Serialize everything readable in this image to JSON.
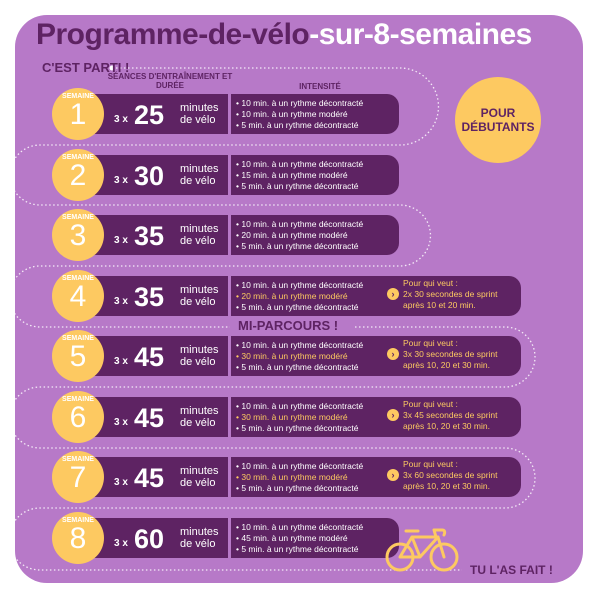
{
  "title": {
    "part1": "Programme-de-vélo",
    "part2": "-sur-8-semaines"
  },
  "start_label": "C'EST PARTI !",
  "headers": {
    "sessions": "SÉANCES D'ENTRAÎNEMENT ET DURÉE",
    "intensity": "INTENSITÉ"
  },
  "badge": "POUR DÉBUTANTS",
  "midpoint_label": "MI-PARCOURS !",
  "end_label": "TU L'AS FAIT !",
  "colors": {
    "background": "#b779c8",
    "dark": "#5e2363",
    "accent": "#fdc961"
  },
  "weeks": [
    {
      "label": "SEMAINE",
      "num": "1",
      "times": "3 x",
      "minutes": "25",
      "unit": "minutes de vélo",
      "steps": [
        "• 10 min. à un rythme décontracté",
        "• 10 min. à un rythme modéré",
        "• 5 min. à un rythme décontracté"
      ],
      "highlight": false
    },
    {
      "label": "SEMAINE",
      "num": "2",
      "times": "3 x",
      "minutes": "30",
      "unit": "minutes de vélo",
      "steps": [
        "• 10 min. à un rythme décontracté",
        "• 15 min. à un rythme modéré",
        "• 5 min. à un rythme décontracté"
      ],
      "highlight": false
    },
    {
      "label": "SEMAINE",
      "num": "3",
      "times": "3 x",
      "minutes": "35",
      "unit": "minutes de vélo",
      "steps": [
        "• 10 min. à un rythme décontracté",
        "• 20 min. à un rythme modéré",
        "• 5 min. à un rythme décontracté"
      ],
      "highlight": false
    },
    {
      "label": "SEMAINE",
      "num": "4",
      "times": "3 x",
      "minutes": "35",
      "unit": "minutes de vélo",
      "steps": [
        "• 10 min. à un rythme décontracté",
        "• 20 min. à un rythme modéré",
        "• 5 min. à un rythme décontracté"
      ],
      "highlight": true,
      "sprint": [
        "Pour qui veut :",
        "2x 30 secondes de sprint",
        "après 10 et 20 min."
      ]
    },
    {
      "label": "SEMAINE",
      "num": "5",
      "times": "3 x",
      "minutes": "45",
      "unit": "minutes de vélo",
      "steps": [
        "• 10 min. à un rythme décontracté",
        "• 30 min. à un rythme modéré",
        "• 5 min. à un rythme décontracté"
      ],
      "highlight": true,
      "sprint": [
        "Pour qui veut :",
        "3x 30 secondes de sprint",
        "après 10, 20 et 30 min."
      ]
    },
    {
      "label": "SEMAINE",
      "num": "6",
      "times": "3 x",
      "minutes": "45",
      "unit": "minutes de vélo",
      "steps": [
        "• 10 min. à un rythme décontracté",
        "• 30 min. à un rythme modéré",
        "• 5 min. à un rythme décontracté"
      ],
      "highlight": true,
      "sprint": [
        "Pour qui veut :",
        "3x 45 secondes de sprint",
        "après 10, 20 et 30 min."
      ]
    },
    {
      "label": "SEMAINE",
      "num": "7",
      "times": "3 x",
      "minutes": "45",
      "unit": "minutes de vélo",
      "steps": [
        "• 10 min. à un rythme décontracté",
        "• 30 min. à un rythme modéré",
        "• 5 min. à un rythme décontracté"
      ],
      "highlight": true,
      "sprint": [
        "Pour qui veut :",
        "3x 60 secondes de sprint",
        "après 10, 20 et 30 min."
      ]
    },
    {
      "label": "SEMAINE",
      "num": "8",
      "times": "3 x",
      "minutes": "60",
      "unit": "minutes de vélo",
      "steps": [
        "• 10 min. à un rythme décontracté",
        "• 45 min. à un rythme modéré",
        "• 5 min. à un rythme décontracté"
      ],
      "highlight": false
    }
  ],
  "icons": {
    "arrow": "chevron-right-icon",
    "bike": "bicycle-icon"
  }
}
